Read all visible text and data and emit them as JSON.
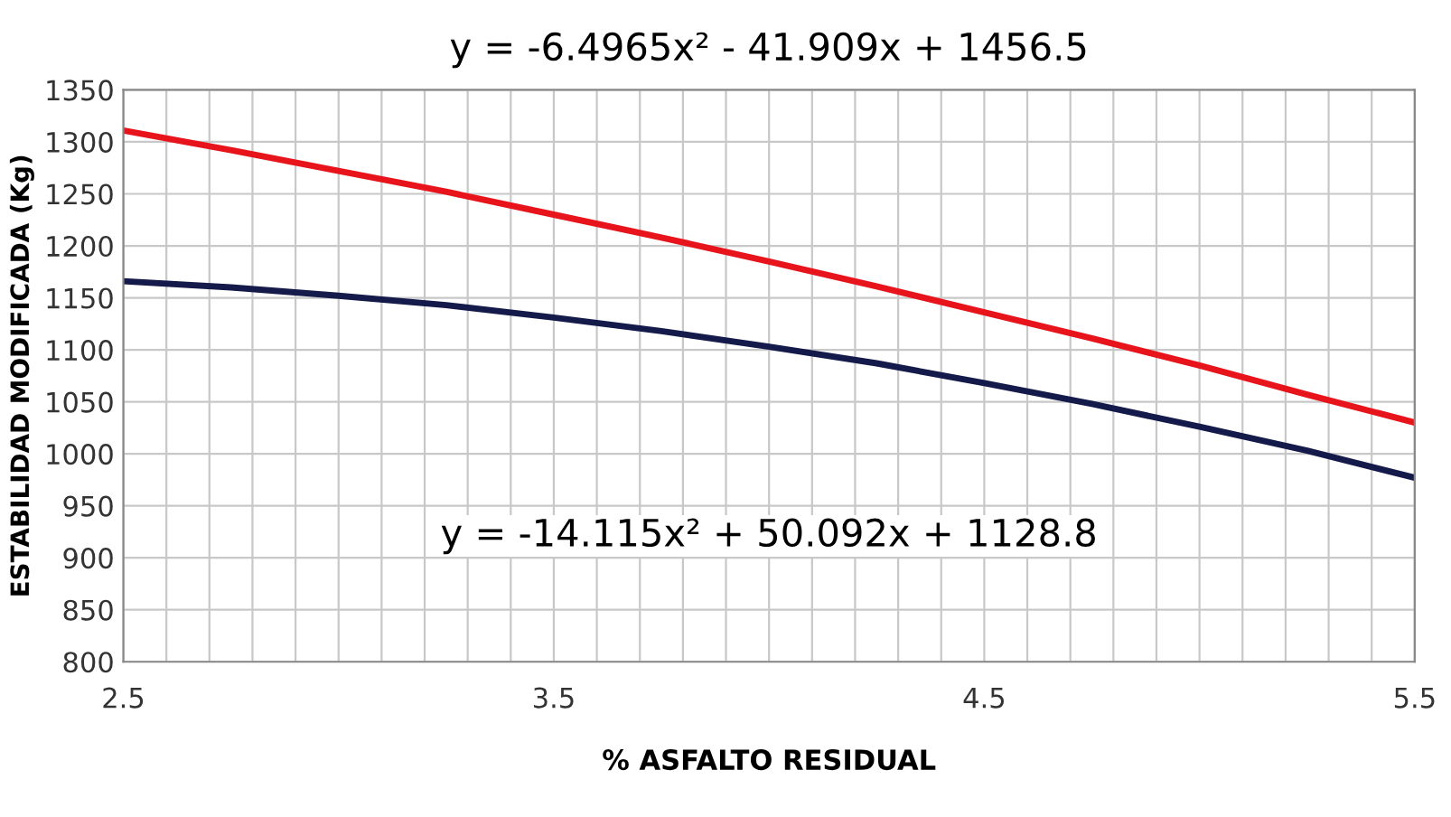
{
  "chart_data": {
    "type": "line",
    "xlabel": "% ASFALTO RESIDUAL",
    "ylabel": "ESTABILIDAD MODIFICADA (Kg)",
    "annotations": [
      "y = -6.4965x² - 41.909x + 1456.5",
      "y = -14.115x² + 50.092x + 1128.8"
    ],
    "x": [
      2.5,
      2.75,
      3.0,
      3.25,
      3.5,
      3.75,
      4.0,
      4.25,
      4.5,
      4.75,
      5.0,
      5.25,
      5.5
    ],
    "series": [
      {
        "color": "#e8141b",
        "values": [
          1311,
          1292,
          1272,
          1252,
          1230,
          1208,
          1185,
          1161,
          1136,
          1111,
          1085,
          1057,
          1030
        ]
      },
      {
        "color": "#141a4a",
        "values": [
          1166,
          1160,
          1152,
          1143,
          1131,
          1118,
          1103,
          1087,
          1068,
          1048,
          1026,
          1003,
          977
        ]
      }
    ],
    "xlim": [
      2.5,
      5.5
    ],
    "xticks": [
      2.5,
      {
        "value": 2.6,
        "label": null
      },
      {
        "value": 2.7,
        "label": null
      },
      {
        "value": 2.8,
        "label": null
      },
      {
        "value": 2.9,
        "label": null
      },
      {
        "value": 3.0,
        "label": null
      },
      {
        "value": 3.1,
        "label": null
      },
      {
        "value": 3.2,
        "label": null
      },
      {
        "value": 3.3,
        "label": null
      },
      {
        "value": 3.4,
        "label": null
      },
      3.5,
      {
        "value": 3.6,
        "label": null
      },
      {
        "value": 3.7,
        "label": null
      },
      {
        "value": 3.8,
        "label": null
      },
      {
        "value": 3.9,
        "label": null
      },
      {
        "value": 4.0,
        "label": null
      },
      {
        "value": 4.1,
        "label": null
      },
      {
        "value": 4.2,
        "label": null
      },
      {
        "value": 4.3,
        "label": null
      },
      {
        "value": 4.4,
        "label": null
      },
      4.5,
      {
        "value": 4.6,
        "label": null
      },
      {
        "value": 4.7,
        "label": null
      },
      {
        "value": 4.8,
        "label": null
      },
      {
        "value": 4.9,
        "label": null
      },
      {
        "value": 5.0,
        "label": null
      },
      {
        "value": 5.1,
        "label": null
      },
      {
        "value": 5.2,
        "label": null
      },
      {
        "value": 5.3,
        "label": null
      },
      {
        "value": 5.4,
        "label": null
      },
      5.5
    ],
    "ylim": [
      800,
      1350
    ],
    "yticks": [
      800,
      850,
      900,
      950,
      1000,
      1050,
      1100,
      1150,
      1200,
      1250,
      1300,
      1350
    ],
    "grid": true,
    "marker": "none",
    "line_style": "solid"
  }
}
